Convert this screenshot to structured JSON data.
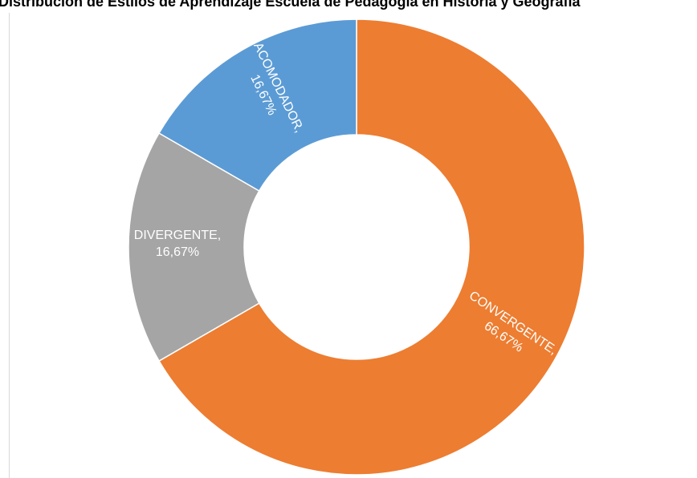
{
  "chart_data": {
    "type": "pie",
    "variant": "donut",
    "title": "Distribución de Estilos de Aprendizaje Escuela de Pedagogía en Historia y Geografía",
    "slices": [
      {
        "label": "CONVERGENTE",
        "value": 66.67,
        "value_label": "66,67%",
        "color": "#ED7D31"
      },
      {
        "label": "DIVERGENTE",
        "value": 16.67,
        "value_label": "16,67%",
        "color": "#A5A5A5"
      },
      {
        "label": "ACOMODADOR",
        "value": 16.67,
        "value_label": "16,67%",
        "color": "#5B9BD5"
      }
    ],
    "legend": "none",
    "grid": false
  }
}
